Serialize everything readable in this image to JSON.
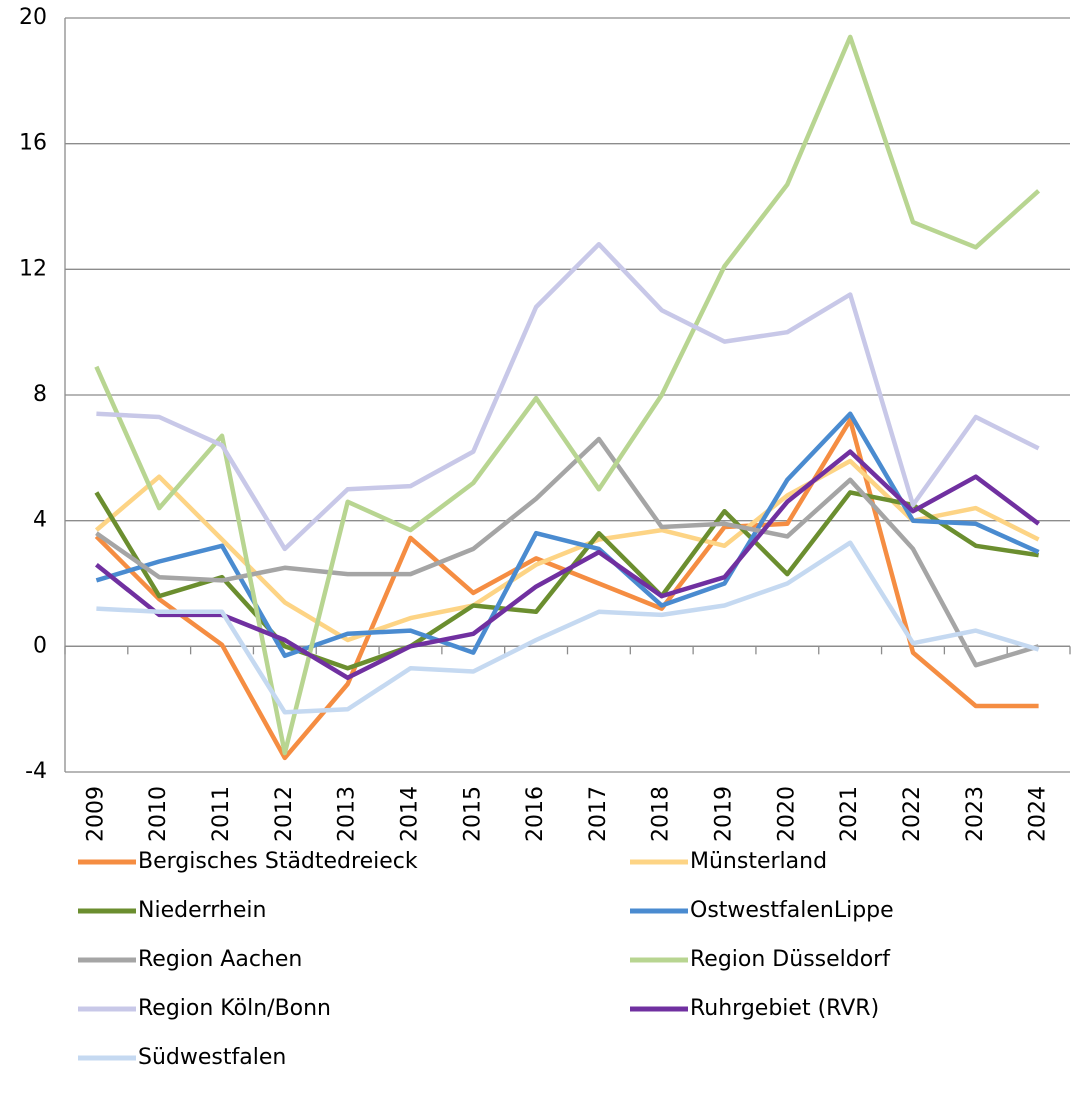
{
  "chart_data": {
    "type": "line",
    "categories": [
      "2009",
      "2010",
      "2011",
      "2012",
      "2013",
      "2014",
      "2015",
      "2016",
      "2017",
      "2018",
      "2019",
      "2020",
      "2021",
      "2022",
      "2023",
      "2024"
    ],
    "series": [
      {
        "name": "Bergisches Städtedreieck",
        "color": "#f58d42",
        "values": [
          3.5,
          1.5,
          0.05,
          -3.55,
          -1.2,
          3.45,
          1.7,
          2.8,
          2.0,
          1.2,
          3.8,
          3.9,
          7.2,
          -0.2,
          -1.9,
          -1.9
        ]
      },
      {
        "name": "Münsterland",
        "color": "#fdd485",
        "values": [
          3.7,
          5.4,
          3.4,
          1.4,
          0.2,
          0.9,
          1.3,
          2.6,
          3.4,
          3.7,
          3.2,
          4.8,
          5.9,
          4.0,
          4.4,
          3.4
        ]
      },
      {
        "name": "Niederrhein",
        "color": "#6b8e2f",
        "values": [
          4.9,
          1.6,
          2.2,
          0.0,
          -0.7,
          0.0,
          1.3,
          1.1,
          3.6,
          1.6,
          4.3,
          2.3,
          4.9,
          4.5,
          3.2,
          2.9
        ]
      },
      {
        "name": "OstwestfalenLippe",
        "color": "#4a8bd0",
        "values": [
          2.1,
          2.7,
          3.2,
          -0.3,
          0.4,
          0.5,
          -0.2,
          3.6,
          3.1,
          1.3,
          2.0,
          5.3,
          7.4,
          4.0,
          3.9,
          3.0
        ]
      },
      {
        "name": "Region Aachen",
        "color": "#a5a5a5",
        "values": [
          3.6,
          2.2,
          2.1,
          2.5,
          2.3,
          2.3,
          3.1,
          4.7,
          6.6,
          3.8,
          3.9,
          3.5,
          5.3,
          3.1,
          -0.6,
          0.0
        ]
      },
      {
        "name": "Region Düsseldorf",
        "color": "#b8d591",
        "values": [
          8.9,
          4.4,
          6.7,
          -3.4,
          4.6,
          3.7,
          5.2,
          7.9,
          5.0,
          8.0,
          12.1,
          14.7,
          19.4,
          13.5,
          12.7,
          14.5
        ]
      },
      {
        "name": "Region Köln/Bonn",
        "color": "#c8c8e8",
        "values": [
          7.4,
          7.3,
          6.4,
          3.1,
          5.0,
          5.1,
          6.2,
          10.8,
          12.8,
          10.7,
          9.7,
          10.0,
          11.2,
          4.5,
          7.3,
          6.3
        ]
      },
      {
        "name": "Ruhrgebiet (RVR)",
        "color": "#7030a0",
        "values": [
          2.6,
          1.0,
          1.0,
          0.2,
          -1.0,
          0.0,
          0.4,
          1.9,
          3.0,
          1.6,
          2.2,
          4.6,
          6.2,
          4.3,
          5.4,
          3.9
        ]
      },
      {
        "name": "Südwestfalen",
        "color": "#c5d9f1",
        "values": [
          1.2,
          1.1,
          1.1,
          -2.1,
          -2.0,
          -0.7,
          -0.8,
          0.2,
          1.1,
          1.0,
          1.3,
          2.0,
          3.3,
          0.1,
          0.5,
          -0.1
        ]
      }
    ],
    "ylim": [
      -4,
      20
    ],
    "yticks": [
      -4,
      0,
      4,
      8,
      12,
      16,
      20
    ],
    "grid": true
  }
}
